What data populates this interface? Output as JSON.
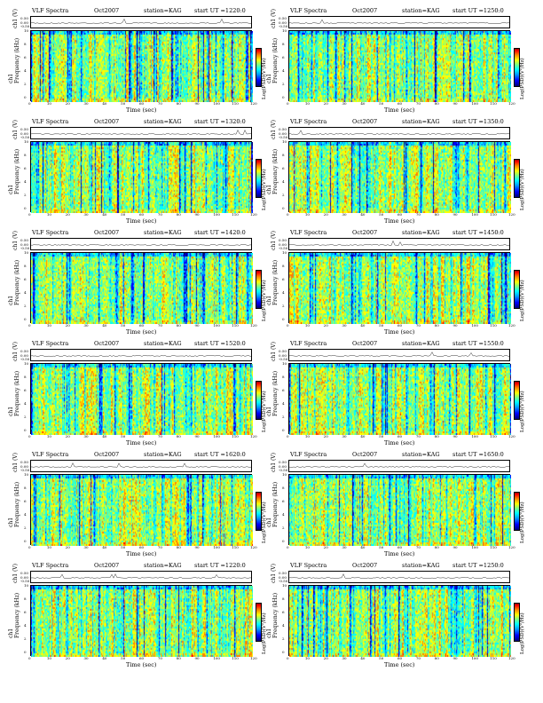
{
  "panel_common": {
    "title": "VLF Spectra",
    "date": "Oct2007",
    "station": "station=KAG",
    "ch_label": "ch1 (V)",
    "freq_label": "ch1\nFrequency (kHz)",
    "time_label": "Time (sec)",
    "cbar_label": "Log(PSD)(V²/Hz)",
    "ch_ticks": [
      "0.50",
      "0.00",
      "-0.50"
    ],
    "freq_ticks": [
      "10",
      "8",
      "6",
      "4",
      "2",
      "0"
    ],
    "time_ticks": [
      "0",
      "10",
      "20",
      "30",
      "40",
      "50",
      "60",
      "70",
      "80",
      "90",
      "100",
      "110",
      "120"
    ]
  },
  "panels": [
    {
      "start": "start  UT =1220:0"
    },
    {
      "start": "start  UT =1250:0"
    },
    {
      "start": "start  UT =1320:0"
    },
    {
      "start": "start  UT =1350:0"
    },
    {
      "start": "start  UT =1420:0"
    },
    {
      "start": "start  UT =1450:0"
    },
    {
      "start": "start  UT =1520:0"
    },
    {
      "start": "start  UT =1550:0"
    },
    {
      "start": "start  UT =1620:0"
    },
    {
      "start": "start  UT =1650:0"
    },
    {
      "start": "start  UT =1220:0"
    },
    {
      "start": "start  UT =1250:0"
    }
  ],
  "chart_data": {
    "type": "heatmap",
    "xlabel": "Time (sec)",
    "ylabel": "Frequency (kHz)",
    "xlim": [
      0,
      120
    ],
    "ylim": [
      0,
      10
    ],
    "colorbar_label": "Log(PSD)(V²/Hz)",
    "colormap": [
      "#00007a",
      "#0000ff",
      "#00a0ff",
      "#00ffff",
      "#7fff7f",
      "#ffff00",
      "#ff8000",
      "#ff0000"
    ]
  }
}
